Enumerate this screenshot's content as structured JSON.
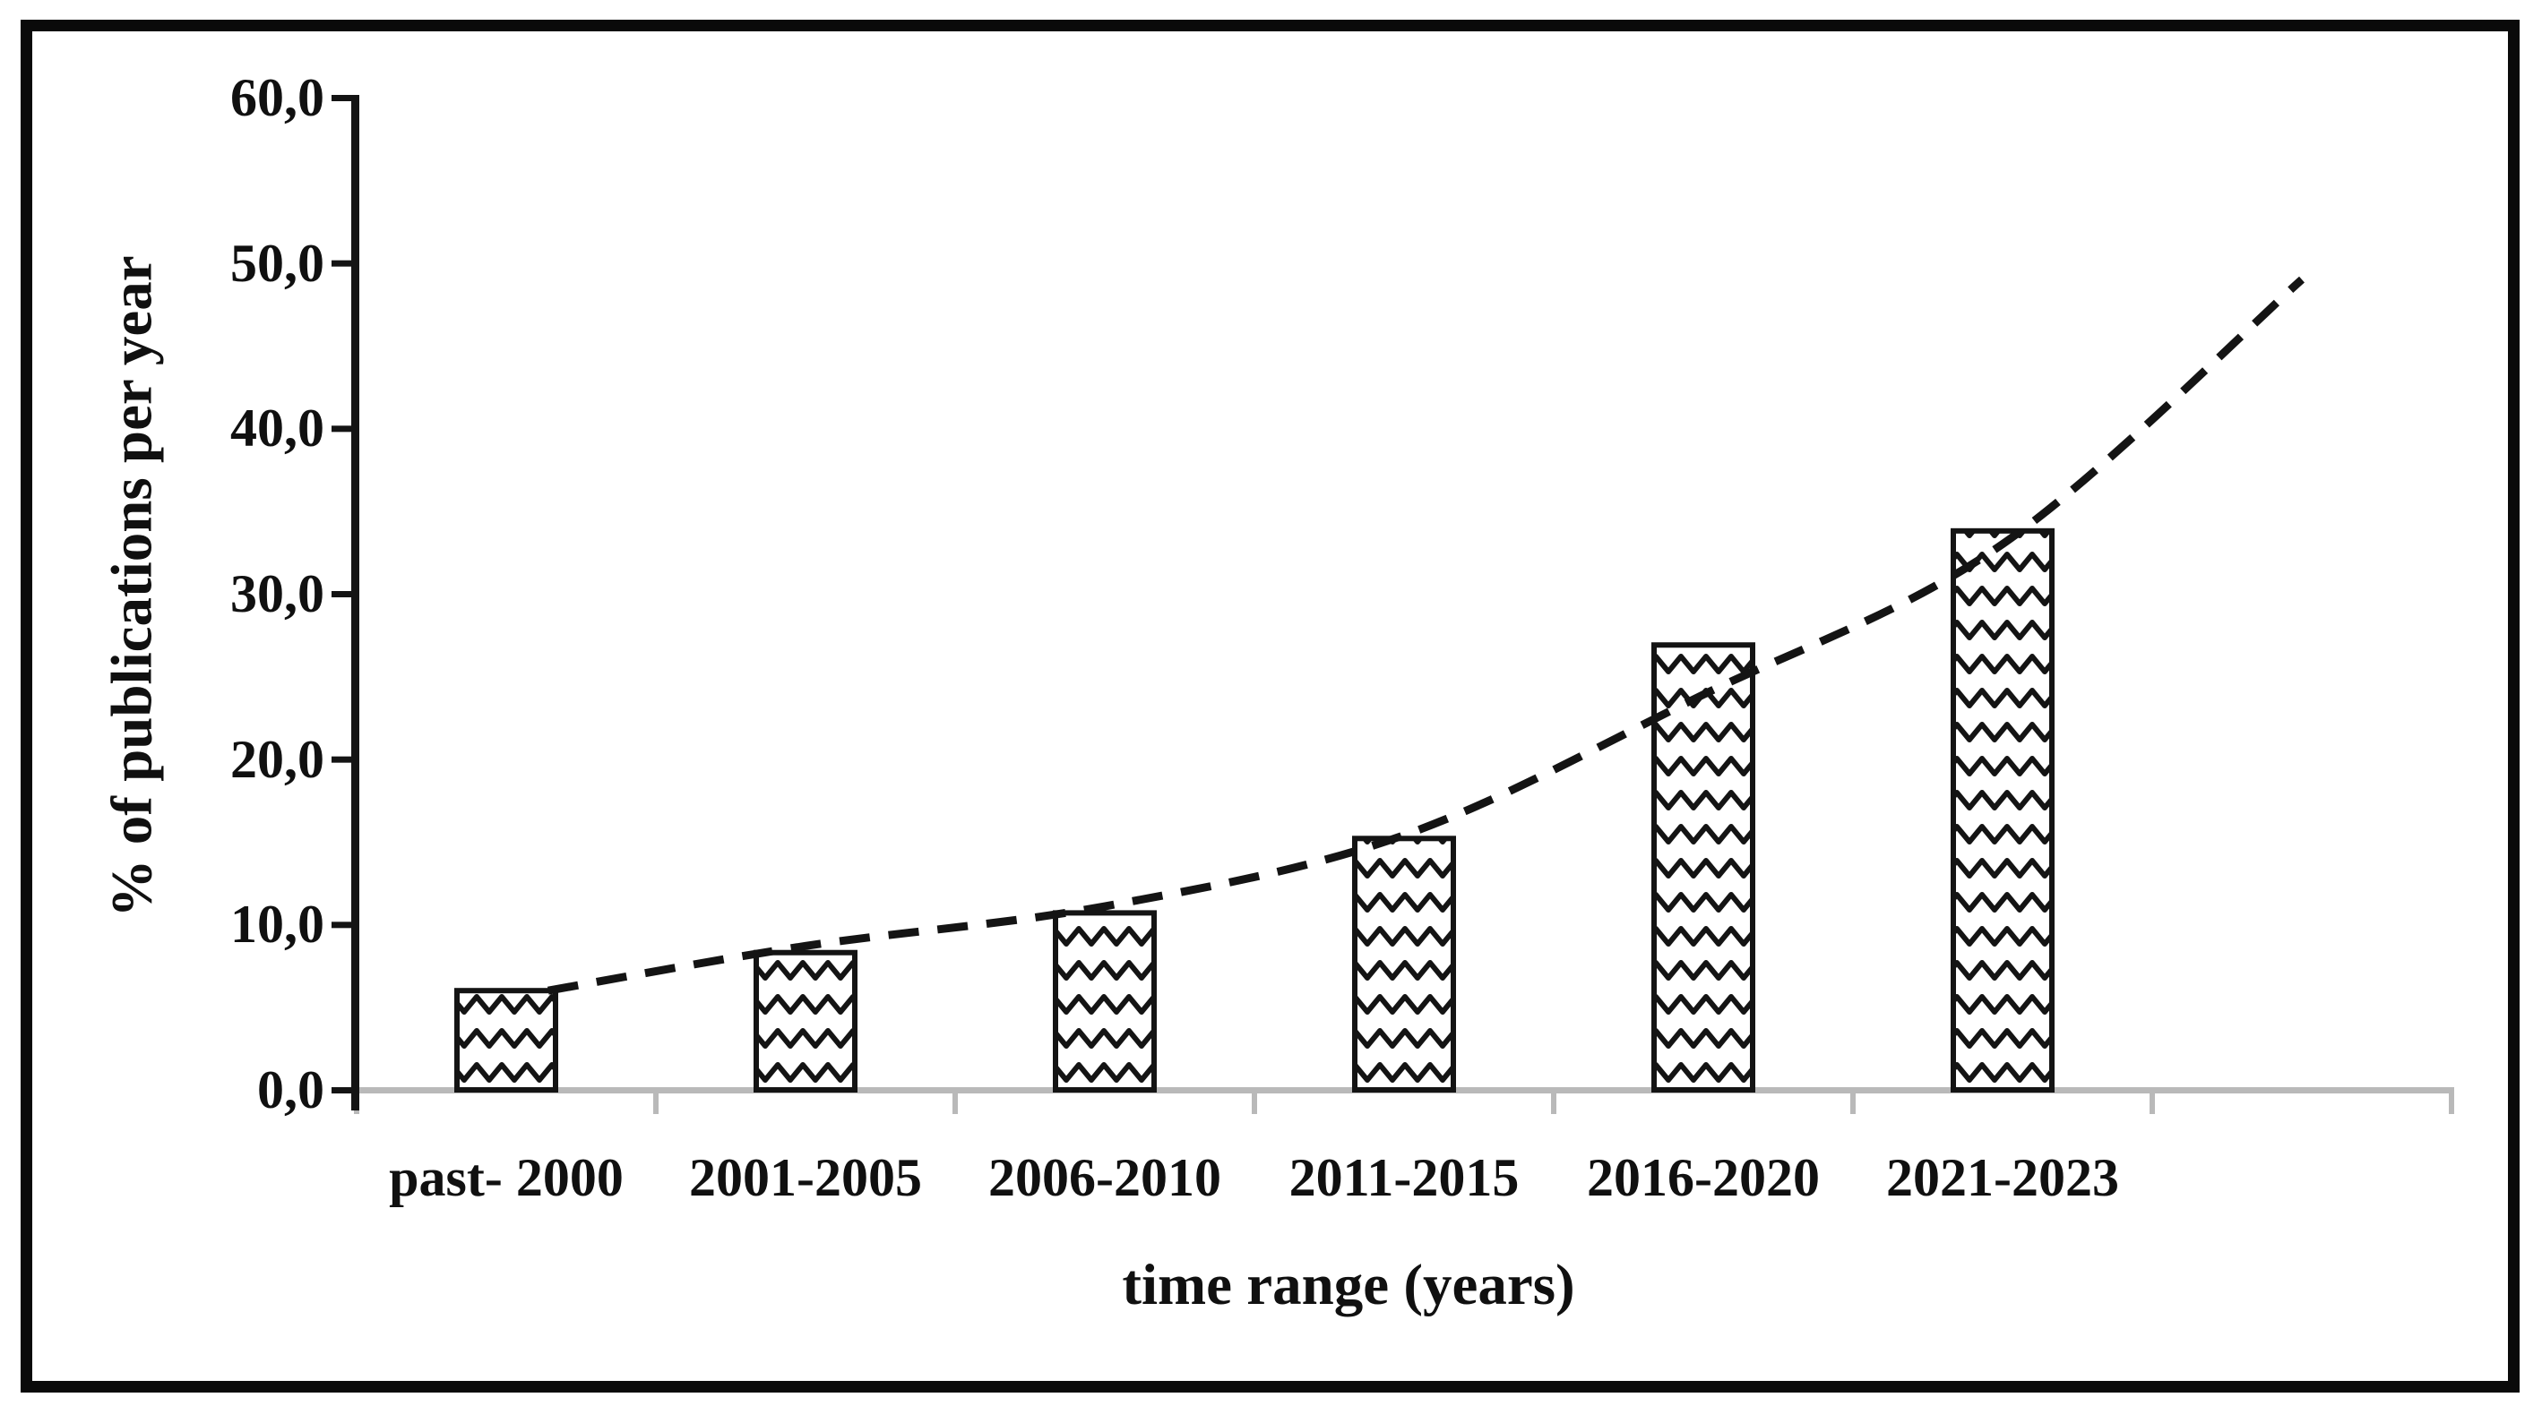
{
  "figure": {
    "kind": "scientific bar chart figure with framed border",
    "frame_color": "#0a0a0a"
  },
  "colors": {
    "ink": "#141414",
    "text": "#101010",
    "x_axis_gray": "#b9b9b9",
    "background": "#ffffff"
  },
  "chart_data": {
    "type": "bar",
    "title": "",
    "categories": [
      "past- 2000",
      "2001-2005",
      "2006-2010",
      "2011-2015",
      "2016-2020",
      "2021-2023"
    ],
    "values": [
      6.0,
      8.3,
      10.7,
      15.2,
      26.9,
      33.8
    ],
    "xlabel": "time range (years)",
    "ylabel": "% of publications per year",
    "ylim": [
      0,
      60
    ],
    "ytick_step": 10,
    "ytick_labels": [
      "0,0",
      "10,0",
      "20,0",
      "30,0",
      "40,0",
      "50,0",
      "60,0"
    ],
    "decimal_separator": "comma",
    "grid": false,
    "legend": false,
    "x_axis_slots": 7,
    "bar_fill": "white with black zigzag wave hatch pattern, black outline",
    "trendline": {
      "style": "dashed black curve, exponential-like, extends one empty slot past the last bar",
      "points": [
        {
          "slot": 0.64,
          "value": 6.0
        },
        {
          "slot": 1.5,
          "value": 8.7
        },
        {
          "slot": 2.5,
          "value": 11.1
        },
        {
          "slot": 3.5,
          "value": 15.4
        },
        {
          "slot": 4.5,
          "value": 23.9
        },
        {
          "slot": 5.5,
          "value": 33.0
        },
        {
          "slot": 6.5,
          "value": 49.0
        }
      ]
    }
  }
}
